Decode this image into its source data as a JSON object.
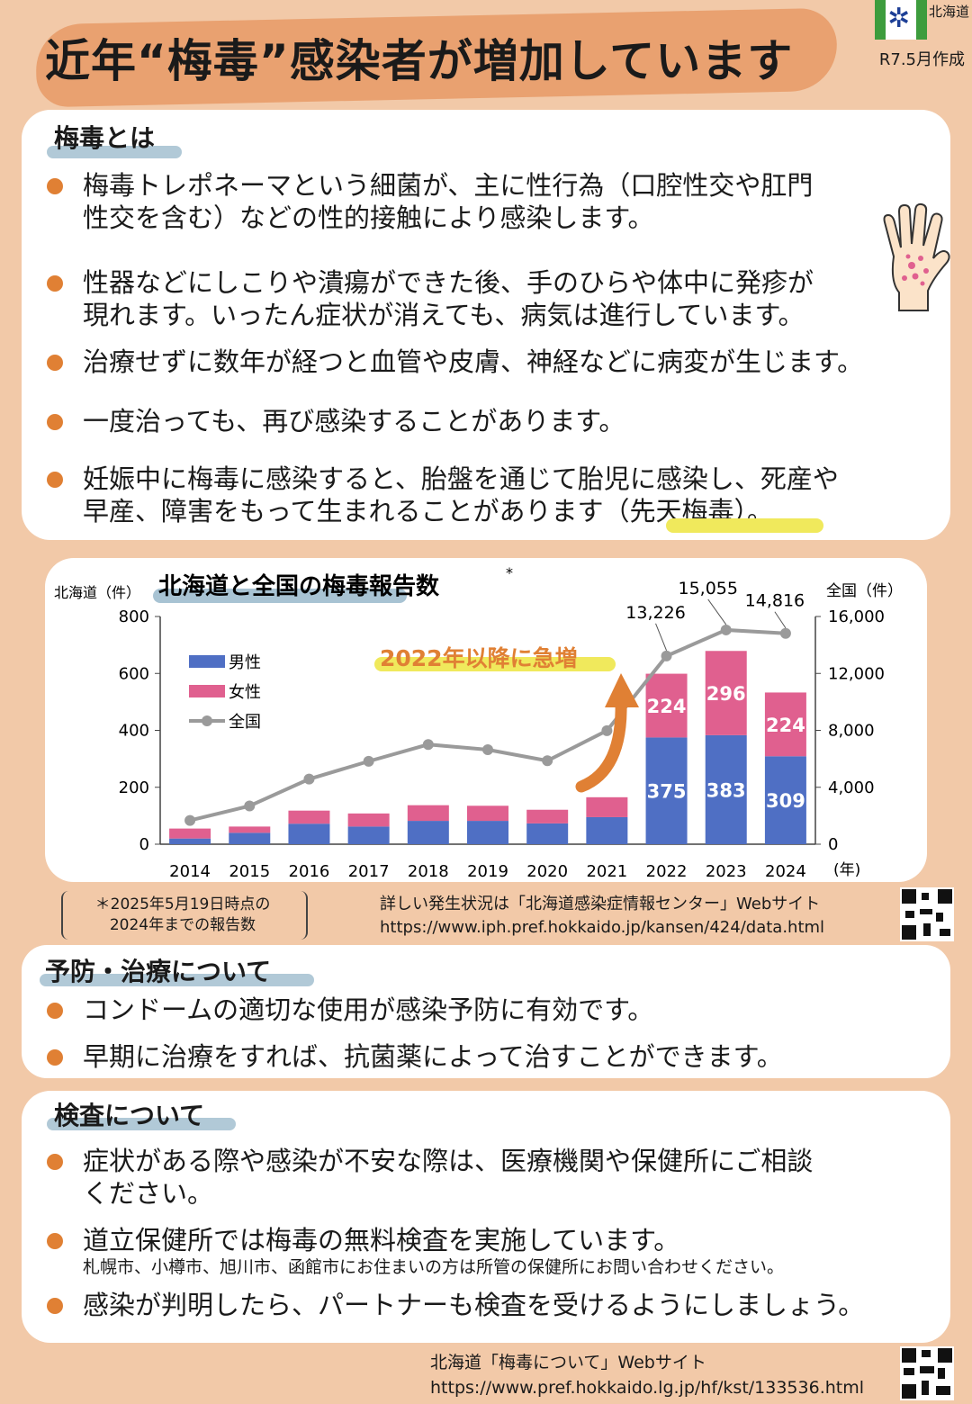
{
  "header": {
    "title": "近年“梅毒”感染者が増加しています",
    "created": "R7.5月作成",
    "prefecture": "北海道"
  },
  "section_about": {
    "heading": "梅毒とは",
    "bullets": [
      [
        "梅毒トレポネーマという細菌が、主に性行為（口腔性交や肛門",
        "性交を含む）などの性的接触により感染します。"
      ],
      [
        "性器などにしこりや潰瘍ができた後、手のひらや体中に発疹が",
        "現れます。いったん症状が消えても、病気は進行しています。"
      ],
      [
        "治療せずに数年が経つと血管や皮膚、神経などに病変が生じます。"
      ],
      [
        "一度治っても、再び感染することがあります。"
      ],
      [
        "妊娠中に梅毒に感染すると、胎盤を通じて胎児に感染し、死産や",
        "早産、障害をもって生まれることがあります（先天梅毒）。"
      ]
    ]
  },
  "chart_data": {
    "type": "bar",
    "title": "北海道と全国の梅毒報告数",
    "title_mark": "*",
    "categories": [
      "2014",
      "2015",
      "2016",
      "2017",
      "2018",
      "2019",
      "2020",
      "2021",
      "2022",
      "2023",
      "2024"
    ],
    "series": [
      {
        "name": "男性",
        "values": [
          20,
          40,
          72,
          62,
          82,
          82,
          73,
          95,
          375,
          383,
          309
        ],
        "color": "#4f6fc4"
      },
      {
        "name": "女性",
        "values": [
          35,
          22,
          46,
          46,
          55,
          53,
          48,
          70,
          224,
          296,
          224
        ],
        "color": "#e0608f"
      },
      {
        "name": "全国",
        "type": "line",
        "axis": "right",
        "values": [
          1671,
          2690,
          4575,
          5826,
          7007,
          6642,
          5867,
          7978,
          13226,
          15055,
          14816
        ],
        "color": "#9a9a9a"
      }
    ],
    "ylim_left": [
      0,
      800
    ],
    "ylim_right": [
      0,
      16000
    ],
    "left_ticks": [
      "800",
      "600",
      "400",
      "200",
      "0"
    ],
    "right_ticks": [
      "16,000",
      "12,000",
      "8,000",
      "4,000",
      "0"
    ],
    "left_axis_label": "北海道（件）",
    "right_axis_label": "全国（件）",
    "x_unit": "(年)",
    "bar_labels_male": {
      "2022": "375",
      "2023": "383",
      "2024": "309"
    },
    "bar_labels_female": {
      "2022": "224",
      "2023": "296",
      "2024": "224"
    },
    "line_labels": {
      "2022": "13,226",
      "2023": "15,055",
      "2024": "14,816"
    },
    "annotation": "2022年以降に急増",
    "legend_position": "top-left",
    "grid": false
  },
  "chart_notes": {
    "footnote_line1": "＊2025年5月19日時点の",
    "footnote_line2": "2024年までの報告数",
    "source_line1": "詳しい発生状況は「北海道感染症情報センター」Webサイト",
    "source_url": "https://www.iph.pref.hokkaido.jp/kansen/424/data.html"
  },
  "section_prevention": {
    "heading": "予防・治療について",
    "bullets": [
      "コンドームの適切な使用が感染予防に有効です。",
      "早期に治療をすれば、抗菌薬によって治すことができます。"
    ]
  },
  "section_testing": {
    "heading": "検査について",
    "bullet1_line1": "症状がある際や感染が不安な際は、医療機関や保健所にご相談",
    "bullet1_line2": "ください。",
    "bullet2": "道立保健所では梅毒の無料検査を実施しています。",
    "bullet2_note": "札幌市、小樽市、旭川市、函館市にお住まいの方は所管の保健所にお問い合わせください。",
    "bullet3": "感染が判明したら、パートナーも検査を受けるようにしましょう。"
  },
  "footer": {
    "label": "北海道「梅毒について」Webサイト",
    "url": "https://www.pref.hokkaido.lg.jp/hf/kst/133536.html"
  },
  "colors": {
    "background": "#f2c9a8",
    "accent_orange": "#e08034",
    "male_bar": "#4f6fc4",
    "female_bar": "#e0608f",
    "line": "#9a9a9a"
  },
  "icons": [
    "prefecture-logo-icon",
    "hand-rash-icon",
    "qr-code-icon",
    "up-arrow-icon"
  ]
}
